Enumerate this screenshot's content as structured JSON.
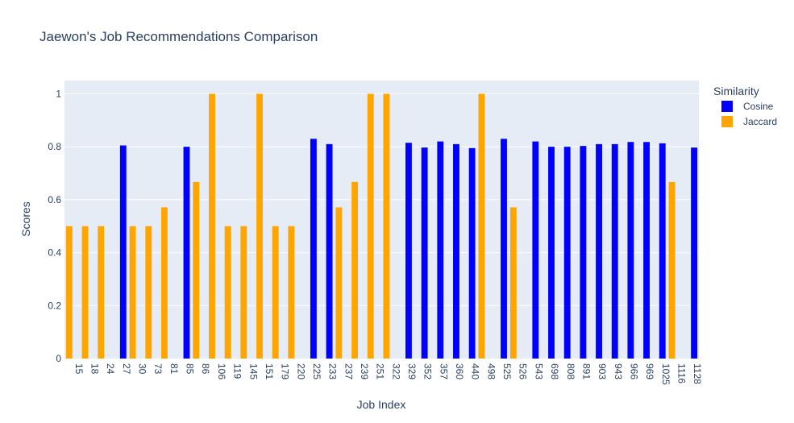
{
  "chart_data": {
    "type": "bar",
    "title": "Jaewon's Job Recommendations Comparison",
    "xlabel": "Job Index",
    "ylabel": "Scores",
    "ylim": [
      0,
      1.05
    ],
    "yticks": [
      0,
      0.2,
      0.4,
      0.6,
      0.8,
      1
    ],
    "ytick_labels": [
      "0",
      "0.2",
      "0.4",
      "0.6",
      "0.8",
      "1"
    ],
    "grid": true,
    "legend_title": "Similarity",
    "legend_position": "top-right",
    "categories": [
      "15",
      "18",
      "24",
      "27",
      "30",
      "73",
      "81",
      "85",
      "86",
      "106",
      "119",
      "145",
      "151",
      "179",
      "220",
      "225",
      "233",
      "237",
      "239",
      "251",
      "322",
      "329",
      "352",
      "357",
      "360",
      "440",
      "498",
      "525",
      "526",
      "543",
      "698",
      "808",
      "891",
      "903",
      "943",
      "966",
      "969",
      "1025",
      "1116",
      "1128"
    ],
    "series": [
      {
        "name": "Cosine",
        "color": "#0000ff",
        "values": [
          null,
          null,
          null,
          0.805,
          null,
          null,
          null,
          0.8,
          null,
          null,
          null,
          null,
          null,
          null,
          null,
          0.83,
          0.81,
          null,
          null,
          null,
          null,
          0.815,
          0.797,
          0.82,
          0.81,
          0.795,
          null,
          0.83,
          null,
          0.82,
          0.8,
          0.8,
          0.803,
          0.81,
          0.81,
          0.818,
          0.818,
          0.813,
          null,
          0.797
        ]
      },
      {
        "name": "Jaccard",
        "color": "#ffa500",
        "values": [
          0.5,
          0.5,
          0.5,
          null,
          0.5,
          0.5,
          0.571,
          null,
          0.667,
          1,
          0.5,
          0.5,
          1,
          0.5,
          0.5,
          null,
          null,
          0.571,
          0.667,
          1,
          1,
          null,
          null,
          null,
          null,
          null,
          1,
          null,
          0.571,
          null,
          null,
          null,
          null,
          null,
          null,
          null,
          null,
          null,
          0.667,
          null
        ]
      }
    ]
  }
}
